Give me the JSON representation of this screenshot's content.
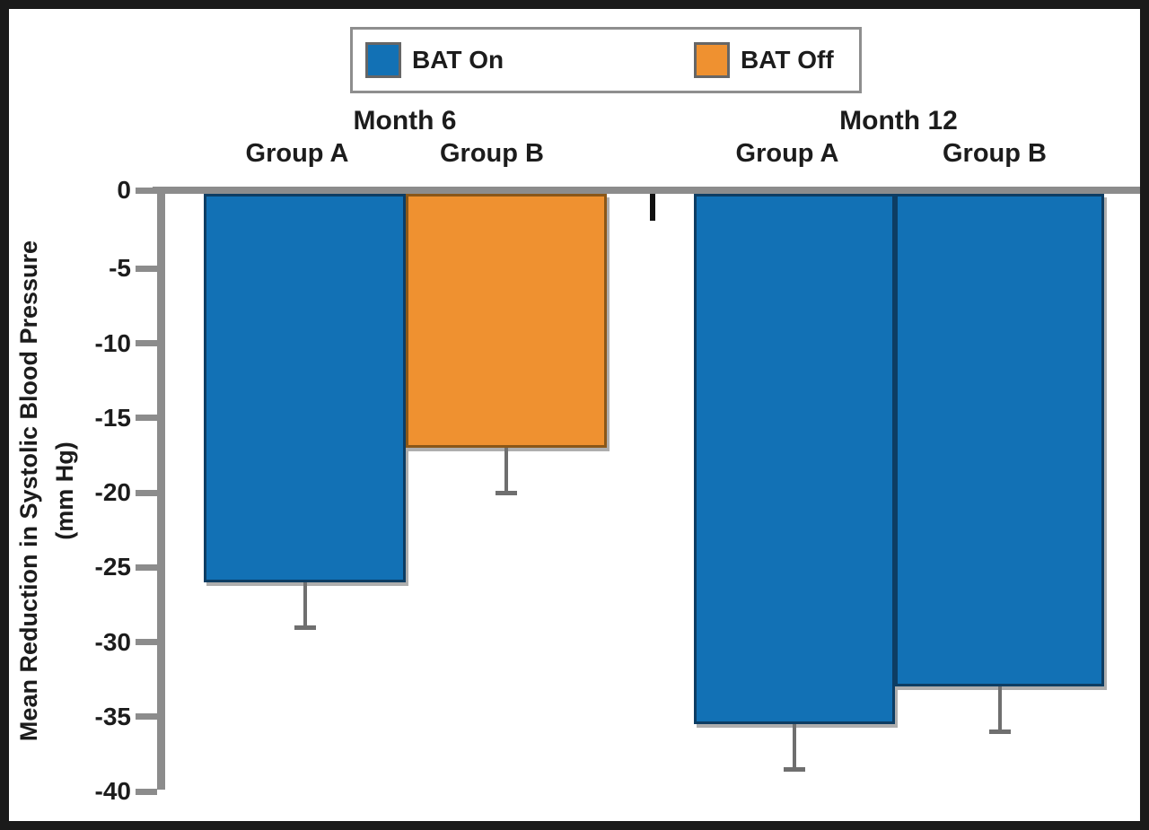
{
  "chart_data": {
    "type": "bar",
    "orientation": "vertical-negative",
    "title": "",
    "ylabel_line1": "Mean Reduction in Systolic Blood Pressure",
    "ylabel_line2": "(mm Hg)",
    "ylim": [
      0,
      -40
    ],
    "ytick_labels": [
      "0",
      "-5",
      "-10",
      "-15",
      "-20",
      "-25",
      "-30",
      "-35",
      "-40"
    ],
    "ytick_values": [
      0,
      -5,
      -10,
      -15,
      -20,
      -25,
      -30,
      -35,
      -40
    ],
    "grid": false,
    "legend_position": "top-center",
    "legend": [
      {
        "label": "BAT On",
        "color": "#1271B5",
        "border_color": "#0d3d63"
      },
      {
        "label": "BAT Off",
        "color": "#EF9130",
        "border_color": "#8a5718"
      }
    ],
    "groups": [
      {
        "label": "Month 6",
        "bars": [
          {
            "label": "Group A",
            "series": "BAT On",
            "value": -26,
            "error_tip": -29
          },
          {
            "label": "Group B",
            "series": "BAT Off",
            "value": -17,
            "error_tip": -20
          }
        ]
      },
      {
        "label": "Month 12",
        "bars": [
          {
            "label": "Group A",
            "series": "BAT On",
            "value": -35.5,
            "error_tip": -38.5
          },
          {
            "label": "Group B",
            "series": "BAT On",
            "value": -33,
            "error_tip": -36
          }
        ]
      }
    ],
    "axis_color": "#8c8c8c",
    "error_bar_color": "#6f6f6f",
    "units": "mm Hg"
  }
}
